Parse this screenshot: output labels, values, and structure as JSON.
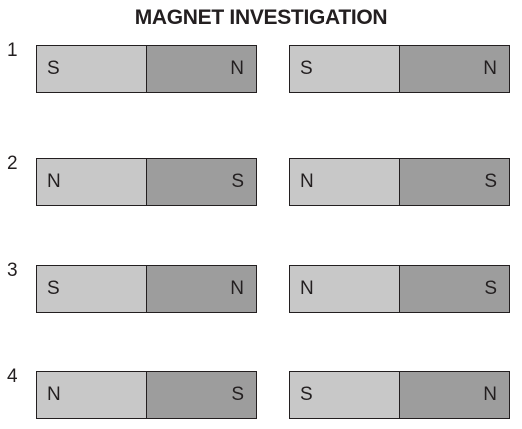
{
  "title": "MAGNET INVESTIGATION",
  "rows": [
    {
      "number": "1",
      "magnets": [
        {
          "left": "S",
          "right": "N"
        },
        {
          "left": "S",
          "right": "N"
        }
      ]
    },
    {
      "number": "2",
      "magnets": [
        {
          "left": "N",
          "right": "S"
        },
        {
          "left": "N",
          "right": "S"
        }
      ]
    },
    {
      "number": "3",
      "magnets": [
        {
          "left": "S",
          "right": "N"
        },
        {
          "left": "N",
          "right": "S"
        }
      ]
    },
    {
      "number": "4",
      "magnets": [
        {
          "left": "N",
          "right": "S"
        },
        {
          "left": "S",
          "right": "N"
        }
      ]
    }
  ],
  "colors": {
    "pole_light": "#c8c8c8",
    "pole_dark": "#9d9d9d",
    "outline": "#231f20"
  }
}
